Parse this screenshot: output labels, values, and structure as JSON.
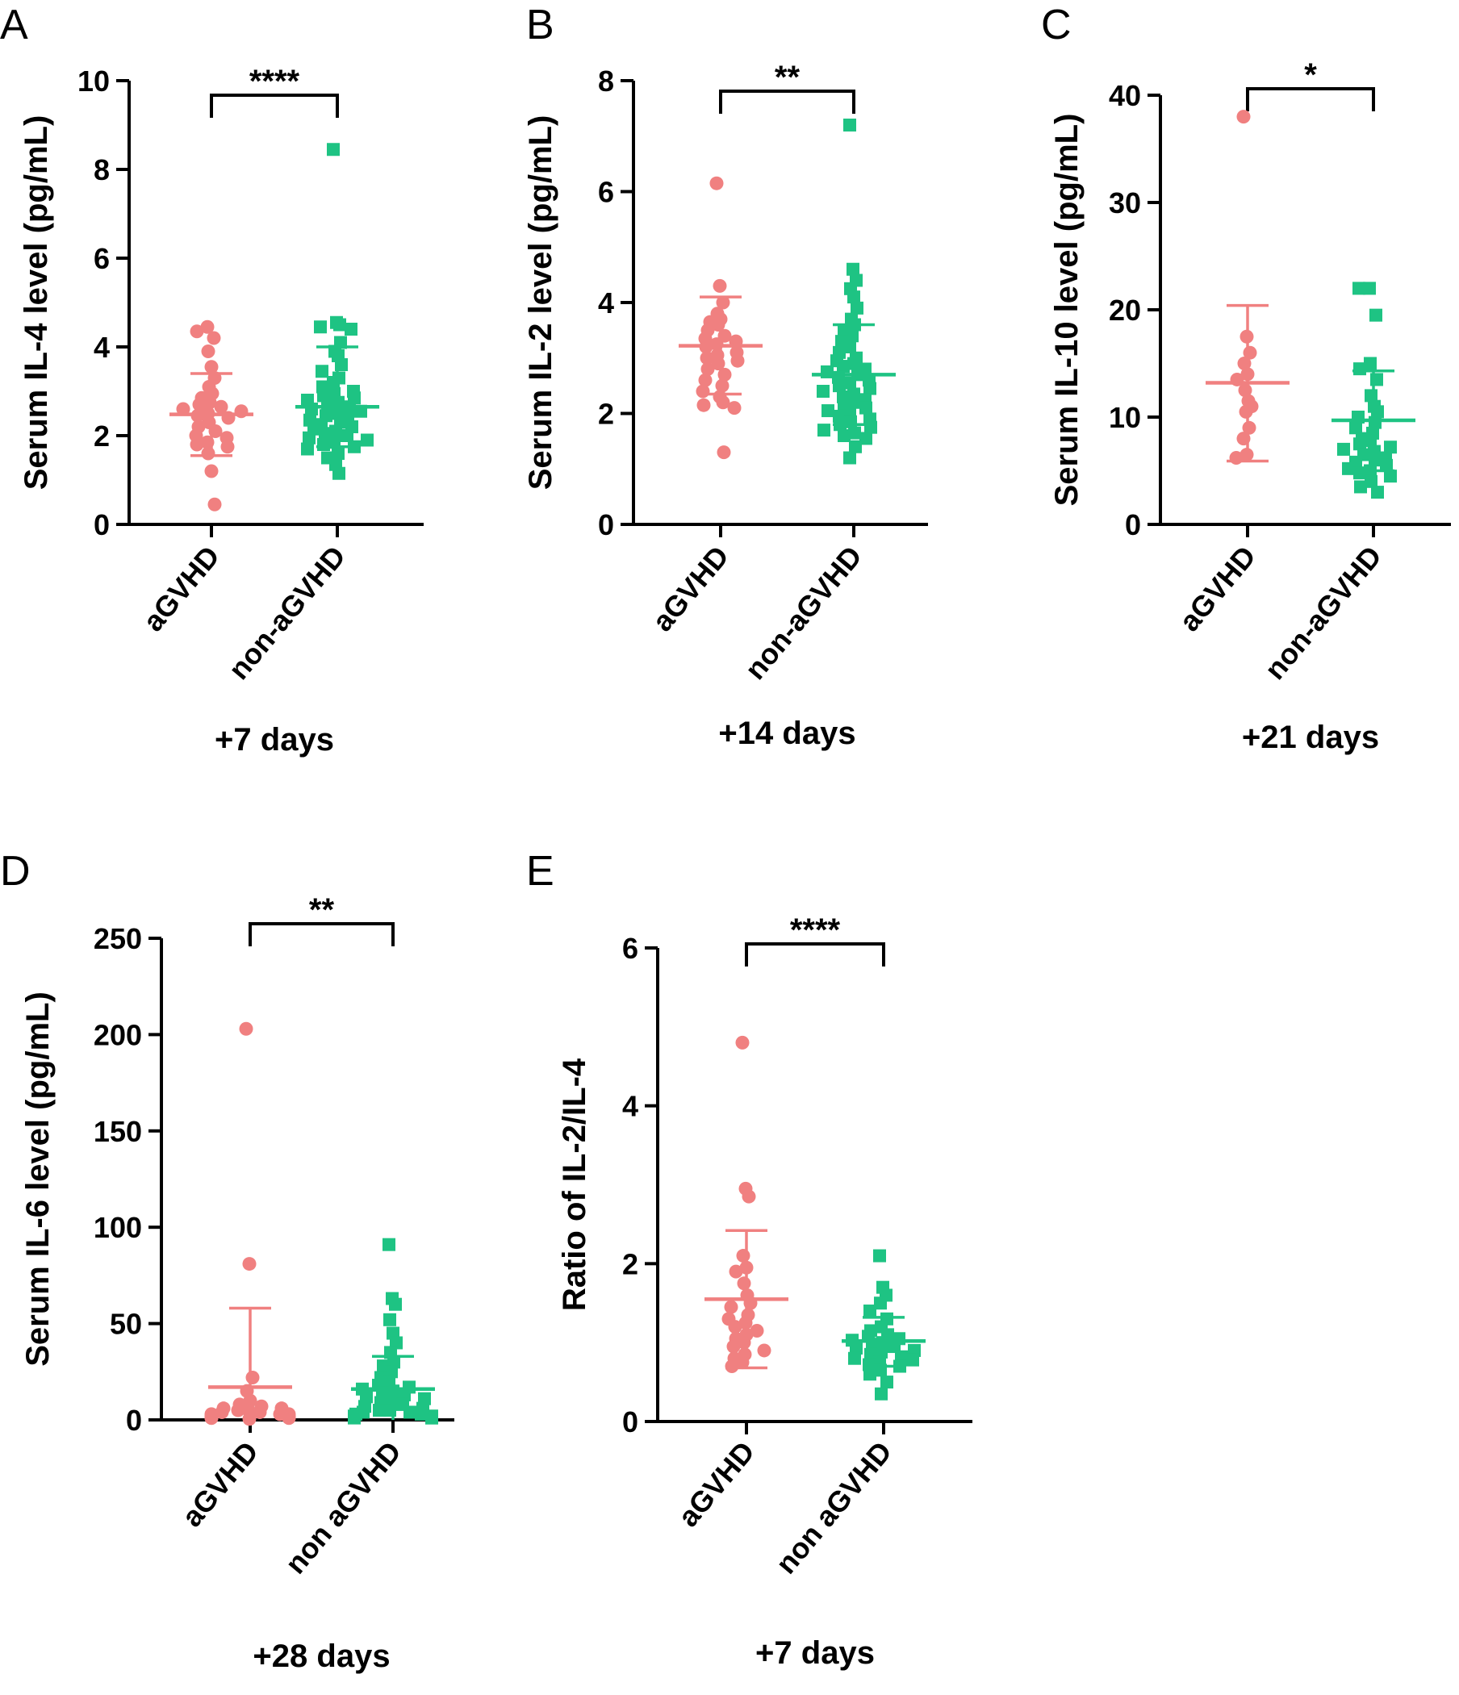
{
  "colors": {
    "agvhd": "#f08080",
    "non_agvhd": "#1ec383",
    "axis": "#000000"
  },
  "chart_data": [
    {
      "panel": "A",
      "type": "scatter",
      "ylabel": "Serum IL-4 level (pg/mL)",
      "ylim": [
        0,
        10
      ],
      "yticks": [
        0,
        2,
        4,
        6,
        8,
        10
      ],
      "categories": [
        "aGVHD",
        "non-aGVHD"
      ],
      "xlabel": "+7 days",
      "significance": "****",
      "series": [
        {
          "name": "aGVHD",
          "marker": "circle",
          "mean": 2.48,
          "sd_low": 1.55,
          "sd_high": 3.4,
          "values": [
            4.45,
            4.35,
            4.2,
            3.9,
            3.55,
            3.3,
            3.1,
            2.95,
            2.85,
            2.75,
            2.7,
            2.65,
            2.6,
            2.55,
            2.5,
            2.45,
            2.4,
            2.3,
            2.2,
            2.1,
            2.0,
            1.95,
            1.85,
            1.8,
            1.75,
            1.6,
            1.2,
            0.45
          ]
        },
        {
          "name": "non-aGVHD",
          "marker": "square",
          "mean": 2.65,
          "sd_low": 1.75,
          "sd_high": 4.0,
          "values": [
            8.45,
            4.55,
            4.5,
            4.45,
            4.4,
            4.1,
            3.9,
            3.8,
            3.6,
            3.45,
            3.3,
            3.2,
            3.1,
            3.0,
            2.95,
            2.9,
            2.85,
            2.8,
            2.75,
            2.7,
            2.65,
            2.6,
            2.55,
            2.5,
            2.45,
            2.4,
            2.35,
            2.3,
            2.25,
            2.2,
            2.15,
            2.1,
            2.05,
            2.0,
            1.95,
            1.9,
            1.85,
            1.8,
            1.75,
            1.7,
            1.6,
            1.5,
            1.35,
            1.15
          ]
        }
      ]
    },
    {
      "panel": "B",
      "type": "scatter",
      "ylabel": "Serum IL-2 level (pg/mL)",
      "ylim": [
        0,
        8
      ],
      "yticks": [
        0,
        2,
        4,
        6,
        8
      ],
      "categories": [
        "aGVHD",
        "non-aGVHD"
      ],
      "xlabel": "+14 days",
      "significance": "**",
      "series": [
        {
          "name": "aGVHD",
          "marker": "circle",
          "mean": 3.22,
          "sd_low": 2.35,
          "sd_high": 4.1,
          "values": [
            6.15,
            4.3,
            4.0,
            3.8,
            3.7,
            3.65,
            3.6,
            3.5,
            3.4,
            3.35,
            3.3,
            3.25,
            3.2,
            3.1,
            3.05,
            3.0,
            2.95,
            2.9,
            2.8,
            2.7,
            2.6,
            2.5,
            2.4,
            2.3,
            2.2,
            2.15,
            2.1,
            1.3
          ]
        },
        {
          "name": "non-aGVHD",
          "marker": "square",
          "mean": 2.7,
          "sd_low": 1.8,
          "sd_high": 3.6,
          "values": [
            7.2,
            4.6,
            4.4,
            4.25,
            4.1,
            3.9,
            3.7,
            3.6,
            3.5,
            3.4,
            3.3,
            3.2,
            3.1,
            3.0,
            2.95,
            2.9,
            2.85,
            2.8,
            2.75,
            2.7,
            2.65,
            2.6,
            2.55,
            2.5,
            2.45,
            2.4,
            2.35,
            2.3,
            2.25,
            2.2,
            2.15,
            2.1,
            2.05,
            2.0,
            1.95,
            1.9,
            1.85,
            1.8,
            1.75,
            1.7,
            1.65,
            1.6,
            1.55,
            1.4,
            1.2
          ]
        }
      ]
    },
    {
      "panel": "C",
      "type": "scatter",
      "ylabel": "Serum IL-10 level (pg/mL)",
      "ylim": [
        0,
        40
      ],
      "yticks": [
        0,
        10,
        20,
        30,
        40
      ],
      "categories": [
        "aGVHD",
        "non-aGVHD"
      ],
      "xlabel": "+21 days",
      "significance": "*",
      "series": [
        {
          "name": "aGVHD",
          "marker": "circle",
          "mean": 13.2,
          "sd_low": 5.9,
          "sd_high": 20.4,
          "values": [
            38.0,
            17.5,
            16.0,
            15.0,
            14.0,
            13.5,
            12.5,
            11.5,
            11.0,
            10.5,
            9.0,
            8.0,
            6.5,
            6.2
          ]
        },
        {
          "name": "non-aGVHD",
          "marker": "square",
          "mean": 9.7,
          "sd_low": 5.0,
          "sd_high": 14.3,
          "values": [
            22.0,
            22.0,
            19.5,
            15.0,
            14.5,
            13.5,
            12.0,
            11.0,
            10.5,
            10.0,
            9.5,
            9.0,
            8.5,
            8.0,
            7.8,
            7.5,
            7.2,
            7.0,
            6.8,
            6.5,
            6.2,
            6.0,
            5.8,
            5.5,
            5.2,
            5.0,
            4.8,
            4.5,
            4.0,
            3.5,
            3.0
          ]
        }
      ]
    },
    {
      "panel": "D",
      "type": "scatter",
      "ylabel": "Serum IL-6 level (pg/mL)",
      "ylim": [
        0,
        250
      ],
      "yticks": [
        0,
        50,
        100,
        150,
        200,
        250
      ],
      "categories": [
        "aGVHD",
        "non aGVHD"
      ],
      "xlabel": "+28 days",
      "significance": "**",
      "series": [
        {
          "name": "aGVHD",
          "marker": "circle",
          "mean": 17.0,
          "sd_low": 0,
          "sd_high": 58.0,
          "values": [
            203,
            81,
            22,
            15,
            10,
            8,
            7,
            6,
            6,
            5,
            5,
            4,
            4,
            3,
            3,
            3,
            2,
            2,
            2,
            1,
            1,
            1,
            1,
            0.5
          ]
        },
        {
          "name": "non aGVHD",
          "marker": "square",
          "mean": 16.0,
          "sd_low": 0,
          "sd_high": 33.0,
          "values": [
            91,
            63,
            60,
            52,
            45,
            40,
            35,
            30,
            28,
            25,
            22,
            20,
            18,
            17,
            16,
            15,
            14,
            13,
            12,
            11,
            10,
            9,
            8,
            7,
            6,
            5,
            5,
            4,
            4,
            3,
            3,
            2,
            2,
            1,
            1,
            1
          ]
        }
      ]
    },
    {
      "panel": "E",
      "type": "scatter",
      "ylabel": "Ratio of IL-2/IL-4",
      "ylim": [
        0,
        6
      ],
      "yticks": [
        0,
        2,
        4,
        6
      ],
      "categories": [
        "aGVHD",
        "non aGVHD"
      ],
      "xlabel": "+7 days",
      "significance": "****",
      "series": [
        {
          "name": "aGVHD",
          "marker": "circle",
          "mean": 1.55,
          "sd_low": 0.68,
          "sd_high": 2.42,
          "values": [
            4.8,
            2.95,
            2.85,
            2.1,
            1.95,
            1.9,
            1.75,
            1.6,
            1.5,
            1.45,
            1.35,
            1.3,
            1.25,
            1.2,
            1.15,
            1.1,
            1.05,
            1.0,
            0.95,
            0.9,
            0.85,
            0.8,
            0.75,
            0.7
          ]
        },
        {
          "name": "non aGVHD",
          "marker": "square",
          "mean": 1.02,
          "sd_low": 0.7,
          "sd_high": 1.32,
          "values": [
            2.1,
            1.7,
            1.6,
            1.5,
            1.4,
            1.3,
            1.2,
            1.15,
            1.1,
            1.08,
            1.05,
            1.03,
            1.0,
            0.98,
            0.95,
            0.93,
            0.9,
            0.88,
            0.85,
            0.82,
            0.8,
            0.78,
            0.75,
            0.72,
            0.7,
            0.65,
            0.6,
            0.5,
            0.35
          ]
        }
      ]
    }
  ]
}
